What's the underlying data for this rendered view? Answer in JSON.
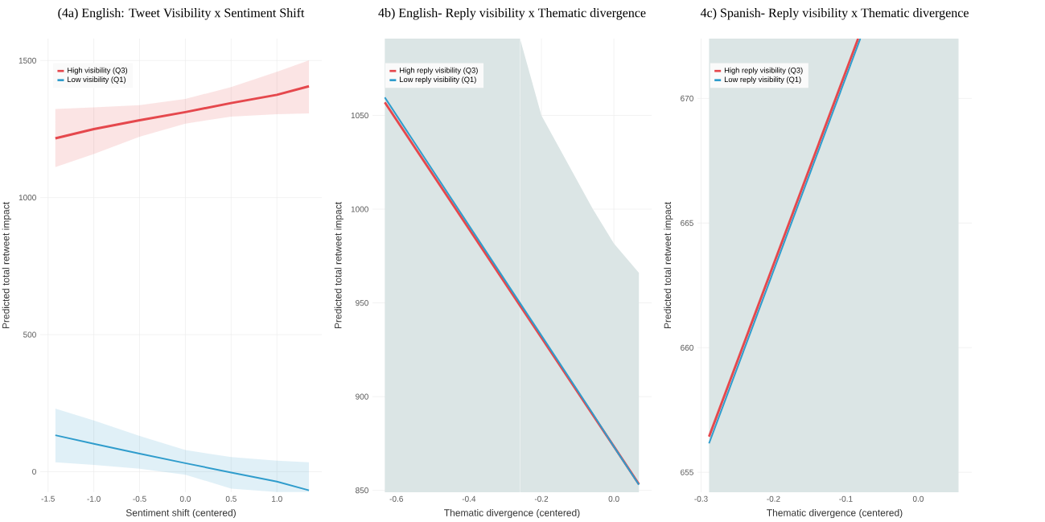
{
  "chart_data": [
    {
      "type": "line",
      "title": "(4a) English: Tweet Visibility x Sentiment Shift",
      "xlabel": "Sentiment shift (centered)",
      "ylabel": "Predicted total retweet impact",
      "xlim": [
        -1.585,
        1.49
      ],
      "ylim": [
        -75,
        1580
      ],
      "xticks": [
        {
          "value": -1.5,
          "label": "-1.5"
        },
        {
          "value": -1,
          "label": "-1.0"
        },
        {
          "value": -0.5,
          "label": "-0.5"
        },
        {
          "value": 0,
          "label": "0.0"
        },
        {
          "value": 0.5,
          "label": "0.5"
        },
        {
          "value": 1,
          "label": "1.0"
        }
      ],
      "yticks": [
        0,
        500,
        1000,
        1500
      ],
      "grid": true,
      "legend": "top left",
      "series": [
        {
          "name": "High visibility (Q3)",
          "color": "#e5484d",
          "x": [
            -1.42,
            -1.0,
            -0.5,
            0,
            0.5,
            1.0,
            1.35
          ],
          "values": [
            1216,
            1250,
            1282,
            1312,
            1345,
            1375,
            1406
          ],
          "lower": [
            1111,
            1159,
            1222,
            1270,
            1295,
            1304,
            1307
          ],
          "upper": [
            1323,
            1329,
            1337,
            1360,
            1403,
            1459,
            1501
          ]
        },
        {
          "name": "Low visibility (Q1)",
          "color": "#2f9ccc",
          "x": [
            -1.42,
            -1.0,
            -0.5,
            0,
            0.5,
            1.0,
            1.35
          ],
          "values": [
            133,
            102,
            66,
            31,
            -3,
            -36,
            -68
          ],
          "lower": [
            34,
            25,
            11,
            -11,
            -62,
            -74,
            -74
          ],
          "upper": [
            230,
            187,
            130,
            79,
            53,
            40,
            34
          ]
        }
      ]
    },
    {
      "type": "line",
      "title": "4b) English- Reply visibility x Thematic divergence",
      "xlabel": "Thematic divergence (centered)",
      "ylabel": "Predicted total retweet impact",
      "xlim": [
        -0.666,
        0.104
      ],
      "ylim": [
        849,
        1091
      ],
      "xticks": [
        {
          "value": -0.6,
          "label": "-0.6"
        },
        {
          "value": -0.4,
          "label": "-0.4"
        },
        {
          "value": -0.2,
          "label": "-0.2"
        },
        {
          "value": 0,
          "label": "0.0"
        }
      ],
      "yticks": [
        850,
        900,
        950,
        1000,
        1050
      ],
      "grid": true,
      "legend": "top left",
      "bands": [
        {
          "axis": "x",
          "from": -0.632,
          "to": -0.259,
          "color": "#dbe5e5"
        }
      ],
      "series": [
        {
          "name": "High reply visibility (Q3)",
          "color": "#e5484d",
          "x": [
            -0.632,
            -0.259,
            -0.2,
            -0.058,
            0,
            0.069
          ],
          "values": [
            1057,
            948.6,
            931.5,
            890.2,
            873.4,
            853.3
          ]
        },
        {
          "name": "Low reply visibility (Q1)",
          "color": "#2f9ccc",
          "x": [
            -0.632,
            -0.259,
            -0.2,
            -0.058,
            0,
            0.069
          ],
          "values": [
            1059.6,
            949.9,
            932.6,
            890.8,
            873.3,
            853
          ]
        },
        {
          "type": "area",
          "color": "#dbe5e5",
          "x": [
            -0.259,
            -0.2,
            -0.058,
            0,
            0.069
          ],
          "values": [
            1091,
            1050,
            1000,
            981.7,
            966
          ]
        }
      ]
    },
    {
      "type": "line",
      "title": "4c) Spanish- Reply visibility x Thematic divergence",
      "xlabel": "Thematic divergence (centered)",
      "ylabel": "Predicted total retweet impact",
      "xlim": [
        -0.305,
        0.074
      ],
      "ylim": [
        654.2,
        672.4
      ],
      "xticks": [
        {
          "value": -0.3,
          "label": "-0.3"
        },
        {
          "value": -0.2,
          "label": "-0.2"
        },
        {
          "value": -0.1,
          "label": "-0.1"
        },
        {
          "value": 0,
          "label": "0.0"
        }
      ],
      "yticks": [
        655,
        660,
        665,
        670
      ],
      "grid": true,
      "legend": "top left",
      "bands": [
        {
          "axis": "x",
          "from": -0.289,
          "to": 0.0557,
          "color": "#dbe5e5"
        }
      ],
      "series": [
        {
          "name": "High reply visibility (Q3)",
          "color": "#e5484d",
          "x": [
            -0.289,
            -0.083
          ],
          "values": [
            656.43,
            672.4
          ]
        },
        {
          "name": "Low reply visibility (Q1)",
          "color": "#2f9ccc",
          "x": [
            -0.289,
            -0.08
          ],
          "values": [
            656.16,
            672.4
          ]
        }
      ]
    }
  ]
}
